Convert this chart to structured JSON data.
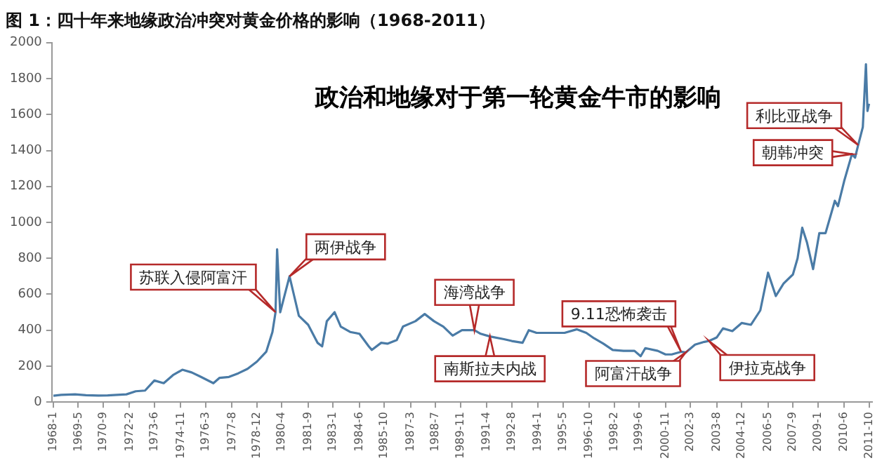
{
  "chart_data": {
    "type": "line",
    "title": "图 1：四十年来地缘政治冲突对黄金价格的影响（1968-2011）",
    "subtitle": "政治和地缘对于第一轮黄金牛市的影响",
    "x": [
      "1968-01",
      "1968-06",
      "1969-03",
      "1969-10",
      "1970-06",
      "1970-12",
      "1971-06",
      "1971-12",
      "1972-06",
      "1972-12",
      "1973-06",
      "1973-12",
      "1974-06",
      "1974-12",
      "1975-06",
      "1975-12",
      "1976-08",
      "1976-12",
      "1977-06",
      "1977-12",
      "1978-06",
      "1978-12",
      "1979-06",
      "1979-10",
      "1979-12",
      "1980-01",
      "1980-03",
      "1980-06",
      "1980-09",
      "1980-12",
      "1981-03",
      "1981-09",
      "1982-03",
      "1982-06",
      "1982-09",
      "1983-02",
      "1983-06",
      "1983-12",
      "1984-06",
      "1984-12",
      "1985-02",
      "1985-08",
      "1985-12",
      "1986-06",
      "1986-10",
      "1987-06",
      "1987-12",
      "1988-06",
      "1988-12",
      "1989-06",
      "1989-12",
      "1990-03",
      "1990-08",
      "1990-12",
      "1991-06",
      "1992-03",
      "1992-08",
      "1993-03",
      "1993-07",
      "1993-12",
      "1994-06",
      "1995-06",
      "1996-02",
      "1996-08",
      "1997-01",
      "1997-07",
      "1998-01",
      "1998-08",
      "1999-03",
      "1999-07",
      "1999-10",
      "2000-06",
      "2000-11",
      "2001-03",
      "2001-09",
      "2001-12",
      "2002-06",
      "2002-12",
      "2003-03",
      "2003-08",
      "2003-12",
      "2004-06",
      "2004-12",
      "2005-06",
      "2005-12",
      "2006-05",
      "2006-10",
      "2007-03",
      "2007-09",
      "2007-12",
      "2008-03",
      "2008-06",
      "2008-10",
      "2009-02",
      "2009-06",
      "2009-12",
      "2010-02",
      "2010-06",
      "2010-11",
      "2011-01",
      "2011-03",
      "2011-06",
      "2011-08",
      "2011-09",
      "2011-10"
    ],
    "series": [
      {
        "color": "#4a7ba6",
        "values": [
          35,
          40,
          43,
          38,
          36,
          37,
          40,
          43,
          60,
          64,
          120,
          105,
          150,
          180,
          165,
          140,
          105,
          135,
          140,
          160,
          185,
          225,
          280,
          390,
          500,
          850,
          500,
          600,
          700,
          590,
          480,
          430,
          330,
          310,
          450,
          500,
          420,
          390,
          380,
          310,
          290,
          330,
          325,
          345,
          420,
          450,
          490,
          450,
          420,
          370,
          400,
          400,
          400,
          380,
          365,
          350,
          340,
          330,
          400,
          385,
          385,
          385,
          405,
          385,
          355,
          325,
          290,
          285,
          285,
          255,
          300,
          285,
          265,
          265,
          280,
          276,
          320,
          335,
          340,
          360,
          410,
          395,
          440,
          430,
          510,
          720,
          590,
          660,
          710,
          800,
          970,
          890,
          740,
          940,
          940,
          1120,
          1090,
          1230,
          1380,
          1360,
          1430,
          1530,
          1880,
          1620,
          1660
        ]
      }
    ],
    "xlim": [
      "1967-12",
      "2011-12"
    ],
    "xticks": [
      {
        "value": "1968-01",
        "label": "1968-1"
      },
      {
        "value": "1969-05",
        "label": "1969-5"
      },
      {
        "value": "1970-09",
        "label": "1970-9"
      },
      {
        "value": "1972-02",
        "label": "1972-2"
      },
      {
        "value": "1973-06",
        "label": "1973-6"
      },
      {
        "value": "1974-11",
        "label": "1974-11"
      },
      {
        "value": "1976-03",
        "label": "1976-3"
      },
      {
        "value": "1977-08",
        "label": "1977-8"
      },
      {
        "value": "1978-12",
        "label": "1978-12"
      },
      {
        "value": "1980-04",
        "label": "1980-4"
      },
      {
        "value": "1981-09",
        "label": "1981-9"
      },
      {
        "value": "1983-01",
        "label": "1983-1"
      },
      {
        "value": "1984-06",
        "label": "1984-6"
      },
      {
        "value": "1985-10",
        "label": "1985-10"
      },
      {
        "value": "1987-03",
        "label": "1987-3"
      },
      {
        "value": "1988-07",
        "label": "1988-7"
      },
      {
        "value": "1989-11",
        "label": "1989-11"
      },
      {
        "value": "1991-04",
        "label": "1991-4"
      },
      {
        "value": "1992-08",
        "label": "1992-8"
      },
      {
        "value": "1994-01",
        "label": "1994-1"
      },
      {
        "value": "1995-05",
        "label": "1995-5"
      },
      {
        "value": "1996-10",
        "label": "1996-10"
      },
      {
        "value": "1998-02",
        "label": "1998-2"
      },
      {
        "value": "1999-06",
        "label": "1999-6"
      },
      {
        "value": "2000-11",
        "label": "2000-11"
      },
      {
        "value": "2002-03",
        "label": "2002-3"
      },
      {
        "value": "2003-08",
        "label": "2003-8"
      },
      {
        "value": "2004-12",
        "label": "2004-12"
      },
      {
        "value": "2006-05",
        "label": "2006-5"
      },
      {
        "value": "2007-09",
        "label": "2007-9"
      },
      {
        "value": "2009-01",
        "label": "2009-1"
      },
      {
        "value": "2010-06",
        "label": "2010-6"
      },
      {
        "value": "2011-10",
        "label": "2011-10"
      }
    ],
    "ylim": [
      0,
      2000
    ],
    "yticks": [
      0,
      200,
      400,
      600,
      800,
      1000,
      1200,
      1400,
      1600,
      1800,
      2000
    ],
    "grid": false,
    "legend": false,
    "marker": "none",
    "line_style": "solid",
    "annotations": [
      {
        "text": "苏联入侵阿富汗",
        "x": "1979-12",
        "y": 500
      },
      {
        "text": "两伊战争",
        "x": "1980-09",
        "y": 700
      },
      {
        "text": "海湾战争",
        "x": "1990-08",
        "y": 400
      },
      {
        "text": "南斯拉夫内战",
        "x": "1991-06",
        "y": 365
      },
      {
        "text": "9.11恐怖袭击",
        "x": "2001-09",
        "y": 280
      },
      {
        "text": "阿富汗战争",
        "x": "2001-12",
        "y": 276
      },
      {
        "text": "伊拉克战争",
        "x": "2003-03",
        "y": 340
      },
      {
        "text": "朝韩冲突",
        "x": "2010-11",
        "y": 1380
      },
      {
        "text": "利比亚战争",
        "x": "2011-03",
        "y": 1430
      }
    ]
  }
}
